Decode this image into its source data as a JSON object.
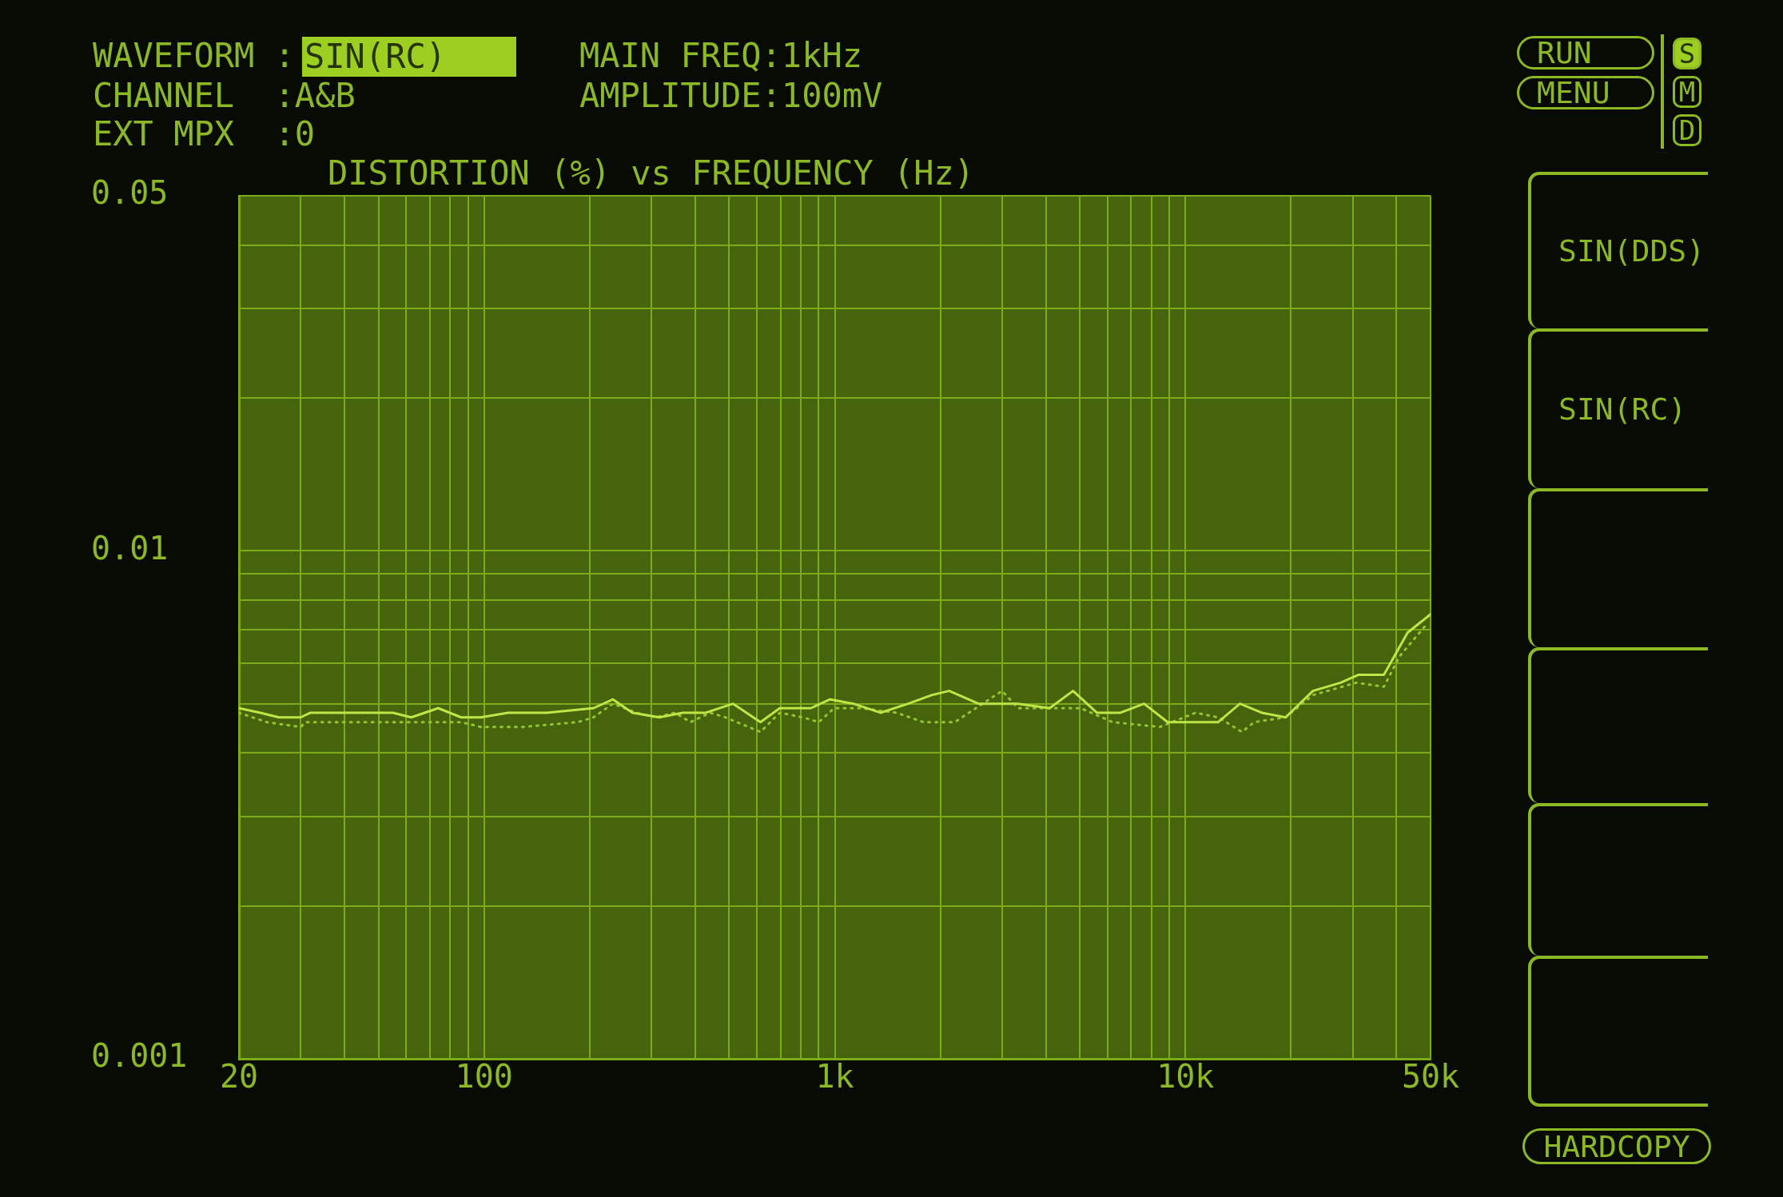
{
  "chart_data": {
    "type": "line",
    "title": "DISTORTION (%) vs FREQUENCY (Hz)",
    "annotations": [
      "WAVEFORM :",
      "SIN(RC)",
      "CHANNEL  :A&B",
      "EXT MPX  :0",
      "MAIN FREQ:1kHz",
      "AMPLITUDE:100mV",
      "RUN",
      "MENU",
      "S",
      "M",
      "D",
      "SIN(DDS)",
      "SIN(RC)",
      "HARDCOPY"
    ],
    "log": "xy",
    "xlim": [
      20,
      50000
    ],
    "ylim": [
      0.001,
      0.05
    ],
    "xticks": [
      20,
      {
        "value": 30,
        "label": null
      },
      {
        "value": 40,
        "label": null
      },
      {
        "value": 50,
        "label": null
      },
      {
        "value": 60,
        "label": null
      },
      {
        "value": 70,
        "label": null
      },
      {
        "value": 80,
        "label": null
      },
      {
        "value": 90,
        "label": null
      },
      100,
      {
        "value": 200,
        "label": null
      },
      {
        "value": 300,
        "label": null
      },
      {
        "value": 400,
        "label": null
      },
      {
        "value": 500,
        "label": null
      },
      {
        "value": 600,
        "label": null
      },
      {
        "value": 700,
        "label": null
      },
      {
        "value": 800,
        "label": null
      },
      {
        "value": 900,
        "label": null
      },
      {
        "value": 1000,
        "label": "1k"
      },
      {
        "value": 2000,
        "label": null
      },
      {
        "value": 3000,
        "label": null
      },
      {
        "value": 4000,
        "label": null
      },
      {
        "value": 5000,
        "label": null
      },
      {
        "value": 6000,
        "label": null
      },
      {
        "value": 7000,
        "label": null
      },
      {
        "value": 8000,
        "label": null
      },
      {
        "value": 9000,
        "label": null
      },
      {
        "value": 10000,
        "label": "10k"
      },
      {
        "value": 20000,
        "label": null
      },
      {
        "value": 30000,
        "label": null
      },
      {
        "value": 40000,
        "label": null
      },
      {
        "value": 50000,
        "label": "50k"
      }
    ],
    "yticks": [
      0.001,
      {
        "value": 0.002,
        "label": null
      },
      {
        "value": 0.003,
        "label": null
      },
      {
        "value": 0.004,
        "label": null
      },
      {
        "value": 0.005,
        "label": null
      },
      {
        "value": 0.006,
        "label": null
      },
      {
        "value": 0.007,
        "label": null
      },
      {
        "value": 0.008,
        "label": null
      },
      {
        "value": 0.009,
        "label": null
      },
      0.01,
      {
        "value": 0.02,
        "label": null
      },
      {
        "value": 0.03,
        "label": null
      },
      {
        "value": 0.04,
        "label": null
      },
      0.05
    ],
    "grid": true,
    "legend": false,
    "marker": "none",
    "series": [
      {
        "color": "#bee646",
        "x": [
          20,
          23,
          26,
          30,
          32,
          49,
          55,
          62,
          74,
          86,
          98,
          117,
          133,
          151,
          205,
          233,
          265,
          316,
          369,
          429,
          513,
          614,
          697,
          855,
          970,
          1130,
          1350,
          1620,
          1890,
          2120,
          2570,
          3330,
          4100,
          4780,
          5590,
          6530,
          7620,
          8900,
          10400,
          12400,
          14300,
          16500,
          19300,
          23100,
          27700,
          31100,
          36800,
          43000,
          50000
        ],
        "values": [
          0.0049,
          0.0048,
          0.0047,
          0.0047,
          0.0048,
          0.0048,
          0.0048,
          0.0047,
          0.0049,
          0.0047,
          0.0047,
          0.0048,
          0.0048,
          0.0048,
          0.0049,
          0.0051,
          0.0048,
          0.0047,
          0.0048,
          0.0048,
          0.005,
          0.0046,
          0.0049,
          0.0049,
          0.0051,
          0.005,
          0.0048,
          0.005,
          0.0052,
          0.0053,
          0.005,
          0.005,
          0.0049,
          0.0053,
          0.0048,
          0.0048,
          0.005,
          0.0046,
          0.0046,
          0.0046,
          0.005,
          0.0048,
          0.0047,
          0.0053,
          0.0055,
          0.0057,
          0.0057,
          0.0069,
          0.0075
        ]
      },
      {
        "color": "#97c232",
        "line_style": "dotted",
        "x": [
          20,
          24,
          30,
          31,
          86,
          98,
          129,
          185,
          205,
          233,
          272,
          308,
          350,
          388,
          441,
          488,
          614,
          697,
          811,
          901,
          996,
          1190,
          1500,
          1790,
          2200,
          3000,
          3330,
          4100,
          5030,
          6200,
          8450,
          10700,
          12400,
          14500,
          15700,
          19300,
          23100,
          30700,
          36800,
          40800,
          49000
        ],
        "values": [
          0.0048,
          0.0046,
          0.0045,
          0.0046,
          0.0046,
          0.0045,
          0.0045,
          0.0046,
          0.0047,
          0.005,
          0.0048,
          0.0047,
          0.0048,
          0.0046,
          0.0048,
          0.0047,
          0.0044,
          0.0048,
          0.0047,
          0.0046,
          0.0049,
          0.0049,
          0.0048,
          0.0046,
          0.0046,
          0.0053,
          0.0049,
          0.0049,
          0.0049,
          0.0046,
          0.0045,
          0.0048,
          0.0047,
          0.0044,
          0.0046,
          0.0047,
          0.0052,
          0.0055,
          0.0054,
          0.0062,
          0.0072
        ]
      }
    ]
  }
}
